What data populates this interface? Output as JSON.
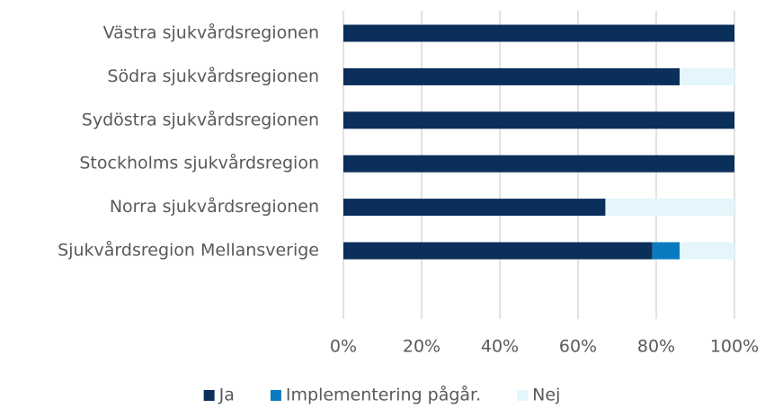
{
  "chart_data": {
    "type": "bar",
    "orientation": "horizontal",
    "stacked": true,
    "categories": [
      "Västra sjukvårdsregionen",
      "Södra sjukvårdsregionen",
      "Sydöstra sjukvårdsregionen",
      "Stockholms sjukvårdsregion",
      "Norra sjukvårdsregionen",
      "Sjukvårdsregion Mellansverige"
    ],
    "series": [
      {
        "name": "Ja",
        "color": "#0b2f5b",
        "values": [
          100,
          86,
          100,
          100,
          67,
          79
        ]
      },
      {
        "name": "Implementering pågår.",
        "color": "#0a7bc1",
        "values": [
          0,
          0,
          0,
          0,
          0,
          7
        ]
      },
      {
        "name": "Nej",
        "color": "#e4f6fb",
        "values": [
          0,
          14,
          0,
          0,
          33,
          14
        ]
      }
    ],
    "xlim": [
      0,
      100
    ],
    "xticks": [
      {
        "value": 0,
        "label": "0%"
      },
      {
        "value": 20,
        "label": "20%"
      },
      {
        "value": 40,
        "label": "40%"
      },
      {
        "value": 60,
        "label": "60%"
      },
      {
        "value": 80,
        "label": "80%"
      },
      {
        "value": 100,
        "label": "100%"
      }
    ],
    "grid": true,
    "legend": "bottom"
  }
}
